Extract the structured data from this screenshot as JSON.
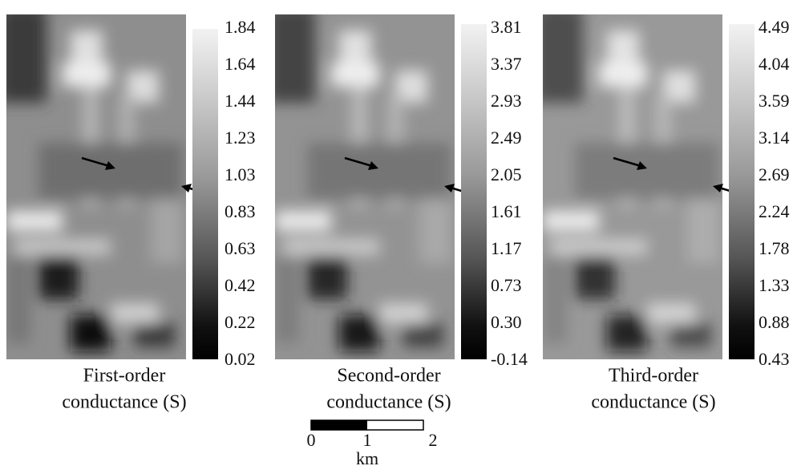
{
  "panels": [
    {
      "caption": [
        "First-order",
        "conductance (S)"
      ],
      "colorbar_ticks": [
        "1.84",
        "1.64",
        "1.44",
        "1.23",
        "1.03",
        "0.83",
        "0.63",
        "0.42",
        "0.22",
        "0.02"
      ]
    },
    {
      "caption": [
        "Second-order",
        "conductance (S)"
      ],
      "colorbar_ticks": [
        "3.81",
        "3.37",
        "2.93",
        "2.49",
        "2.05",
        "1.61",
        "1.17",
        "0.73",
        "0.30",
        "-0.14"
      ]
    },
    {
      "caption": [
        "Third-order",
        "conductance (S)"
      ],
      "colorbar_ticks": [
        "4.49",
        "4.04",
        "3.59",
        "3.14",
        "2.69",
        "2.24",
        "1.78",
        "1.33",
        "0.88",
        "0.43"
      ]
    }
  ],
  "scalebar": {
    "ticks": [
      "0",
      "1",
      "2"
    ],
    "unit": "km"
  }
}
